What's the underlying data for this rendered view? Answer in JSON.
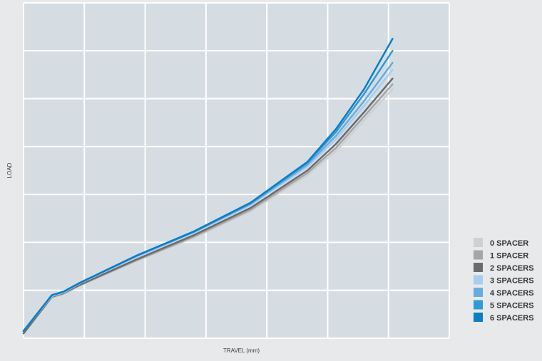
{
  "chart_data": {
    "type": "line",
    "xlabel": "TRAVEL (mm)",
    "ylabel": "LOAD",
    "xlim": [
      0,
      7.5
    ],
    "ylim": [
      0,
      7
    ],
    "grid": true,
    "legend_position": "bottom-right",
    "background_color": "#d5dde3",
    "grid_color": "#ffffff",
    "series": [
      {
        "name": "0 SPACER",
        "color": "#d0d0d0",
        "x": [
          0,
          0.5,
          0.7,
          1,
          2,
          3,
          4,
          5,
          5.5,
          6,
          6.5
        ],
        "y": [
          0.1,
          0.85,
          0.92,
          1.1,
          1.62,
          2.1,
          2.65,
          3.4,
          3.9,
          4.55,
          5.2
        ]
      },
      {
        "name": "1 SPACER",
        "color": "#a6a6a6",
        "x": [
          0,
          0.5,
          0.7,
          1,
          2,
          3,
          4,
          5,
          5.5,
          6,
          6.5
        ],
        "y": [
          0.1,
          0.86,
          0.93,
          1.11,
          1.63,
          2.12,
          2.68,
          3.45,
          3.97,
          4.63,
          5.3
        ]
      },
      {
        "name": "2 SPACERS",
        "color": "#6b6b6b",
        "x": [
          0,
          0.5,
          0.7,
          1,
          2,
          3,
          4,
          5,
          5.5,
          6,
          6.5
        ],
        "y": [
          0.1,
          0.87,
          0.94,
          1.12,
          1.65,
          2.15,
          2.72,
          3.5,
          4.05,
          4.72,
          5.42
        ]
      },
      {
        "name": "3 SPACERS",
        "color": "#a9cdee",
        "x": [
          0,
          0.5,
          0.7,
          1,
          2,
          3,
          4,
          5,
          5.5,
          6,
          6.5
        ],
        "y": [
          0.15,
          0.88,
          0.95,
          1.15,
          1.7,
          2.2,
          2.78,
          3.58,
          4.15,
          4.85,
          5.6
        ]
      },
      {
        "name": "4 SPACERS",
        "color": "#68acdf",
        "x": [
          0,
          0.5,
          0.7,
          1,
          2,
          3,
          4,
          5,
          5.5,
          6,
          6.5
        ],
        "y": [
          0.15,
          0.9,
          0.96,
          1.16,
          1.72,
          2.22,
          2.8,
          3.62,
          4.22,
          4.95,
          5.75
        ]
      },
      {
        "name": "5 SPACERS",
        "color": "#2f9ad6",
        "x": [
          0,
          0.5,
          0.7,
          1,
          2,
          3,
          4,
          5,
          5.5,
          6,
          6.5
        ],
        "y": [
          0.15,
          0.9,
          0.97,
          1.16,
          1.73,
          2.22,
          2.82,
          3.66,
          4.3,
          5.1,
          6.0
        ]
      },
      {
        "name": "6 SPACERS",
        "color": "#0b7ec6",
        "x": [
          0,
          0.5,
          0.7,
          1,
          2,
          3,
          4,
          5,
          5.5,
          6,
          6.5
        ],
        "y": [
          0.15,
          0.9,
          0.97,
          1.16,
          1.73,
          2.23,
          2.83,
          3.68,
          4.36,
          5.2,
          6.25
        ]
      }
    ]
  }
}
